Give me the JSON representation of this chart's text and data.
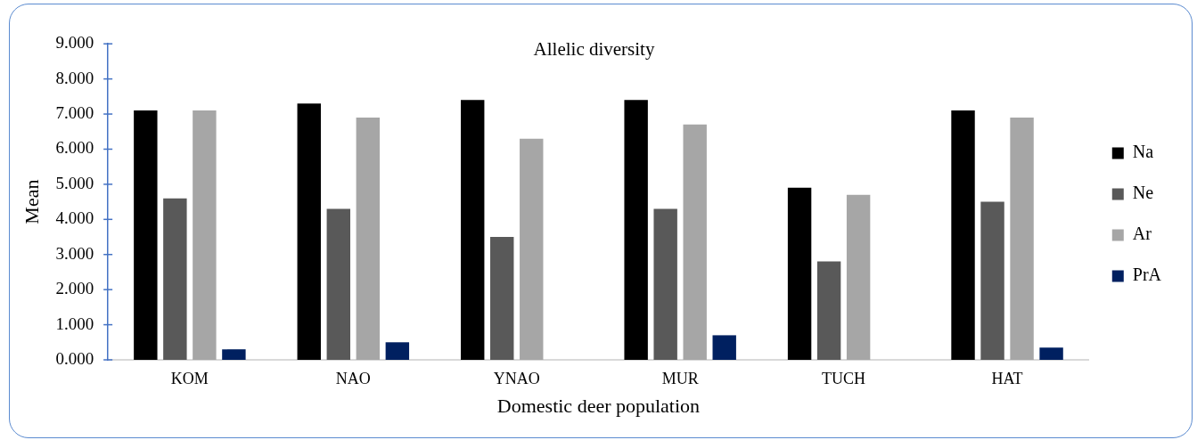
{
  "chart_data": {
    "type": "bar",
    "title": "Allelic diversity",
    "xlabel": "Domestic deer population",
    "ylabel": "Mean",
    "categories": [
      "KOM",
      "NAO",
      "YNAO",
      "MUR",
      "TUCH",
      "HAT"
    ],
    "series": [
      {
        "name": "Na",
        "color": "#000000",
        "values": [
          7.1,
          7.3,
          7.4,
          7.4,
          4.9,
          7.1
        ]
      },
      {
        "name": "Ne",
        "color": "#595959",
        "values": [
          4.6,
          4.3,
          3.5,
          4.3,
          2.8,
          4.5
        ]
      },
      {
        "name": "Ar",
        "color": "#a6a6a6",
        "values": [
          7.1,
          6.9,
          6.3,
          6.7,
          4.7,
          6.9
        ]
      },
      {
        "name": "PrA",
        "color": "#002060",
        "values": [
          0.3,
          0.5,
          0,
          0.7,
          0,
          0.35
        ]
      }
    ],
    "ylim": [
      0,
      9
    ],
    "yticks": [
      {
        "value": 0,
        "label": "0.000"
      },
      {
        "value": 1,
        "label": "1.000"
      },
      {
        "value": 2,
        "label": "2.000"
      },
      {
        "value": 3,
        "label": "3.000"
      },
      {
        "value": 4,
        "label": "4.000"
      },
      {
        "value": 5,
        "label": "5.000"
      },
      {
        "value": 6,
        "label": "6.000"
      },
      {
        "value": 7,
        "label": "7.000"
      },
      {
        "value": 8,
        "label": "8.000"
      },
      {
        "value": 9,
        "label": "9.000"
      }
    ],
    "legend": "right"
  }
}
